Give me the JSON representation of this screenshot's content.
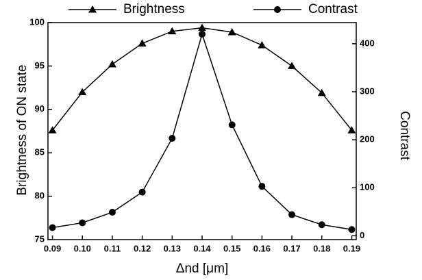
{
  "chart_data": {
    "type": "line",
    "x": [
      0.09,
      0.1,
      0.11,
      0.12,
      0.13,
      0.14,
      0.15,
      0.16,
      0.17,
      0.18,
      0.19
    ],
    "xlabel": "Δnd [μm]",
    "ylabel": "Brightness of ON state",
    "y2label": "Contrast",
    "xlim": [
      0.0885,
      0.1915
    ],
    "xticks": [
      0.09,
      {
        "value": 0.1,
        "label": "0.10"
      },
      0.11,
      0.12,
      0.13,
      0.14,
      0.15,
      0.16,
      0.17,
      0.18,
      0.19
    ],
    "ylim": [
      75,
      100
    ],
    "yticks": [
      75,
      80,
      85,
      90,
      95,
      100
    ],
    "y2lim": [
      -8,
      444
    ],
    "y2ticks": [
      0,
      100,
      200,
      300,
      400
    ],
    "legend": "top",
    "series": [
      {
        "name": "Brightness",
        "color": "#000000",
        "marker": "triangle",
        "values": [
          87.6,
          92.0,
          95.2,
          97.6,
          99.0,
          99.4,
          98.9,
          97.4,
          95.0,
          91.9,
          87.6
        ]
      },
      {
        "name": "Contrast",
        "color": "#000000",
        "marker": "circle",
        "axis": "y2",
        "values": [
          17,
          27,
          49,
          91,
          203,
          420,
          231,
          103,
          44,
          23,
          13
        ]
      }
    ]
  }
}
